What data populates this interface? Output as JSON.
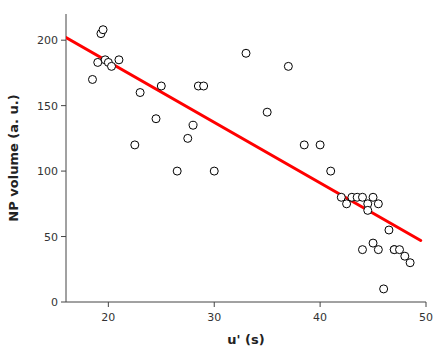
{
  "chart_data": {
    "type": "scatter",
    "xlabel": "u' (s)",
    "ylabel": "NP volume (a. u.)",
    "xlim": [
      16,
      50
    ],
    "ylim": [
      0,
      220
    ],
    "xticks": [
      20,
      30,
      40,
      50
    ],
    "yticks": [
      0,
      50,
      100,
      150,
      200
    ],
    "series": [
      {
        "type": "scatter",
        "marker": "circle",
        "color": "#000000",
        "x": [
          18.5,
          19.0,
          19.3,
          19.5,
          19.7,
          20.0,
          20.3,
          21.0,
          22.5,
          23.0,
          24.5,
          25.0,
          26.5,
          27.5,
          28.0,
          28.5,
          29.0,
          30.0,
          33.0,
          35.0,
          37.0,
          38.5,
          40.0,
          41.0,
          42.0,
          42.5,
          43.0,
          43.5,
          44.0,
          44.0,
          44.5,
          44.5,
          45.0,
          45.0,
          45.5,
          45.5,
          46.0,
          46.5,
          47.0,
          47.0,
          47.5,
          48.0,
          48.5
        ],
        "values": [
          170,
          183,
          205,
          208,
          185,
          183,
          180,
          185,
          120,
          160,
          140,
          165,
          100,
          125,
          135,
          165,
          165,
          100,
          190,
          145,
          180,
          120,
          120,
          100,
          80,
          75,
          80,
          80,
          80,
          40,
          75,
          70,
          80,
          45,
          75,
          40,
          10,
          55,
          40,
          40,
          40,
          35,
          30
        ]
      },
      {
        "type": "line",
        "color": "#ff0000",
        "x": [
          16.0,
          49.5
        ],
        "values": [
          202,
          47
        ]
      }
    ]
  }
}
